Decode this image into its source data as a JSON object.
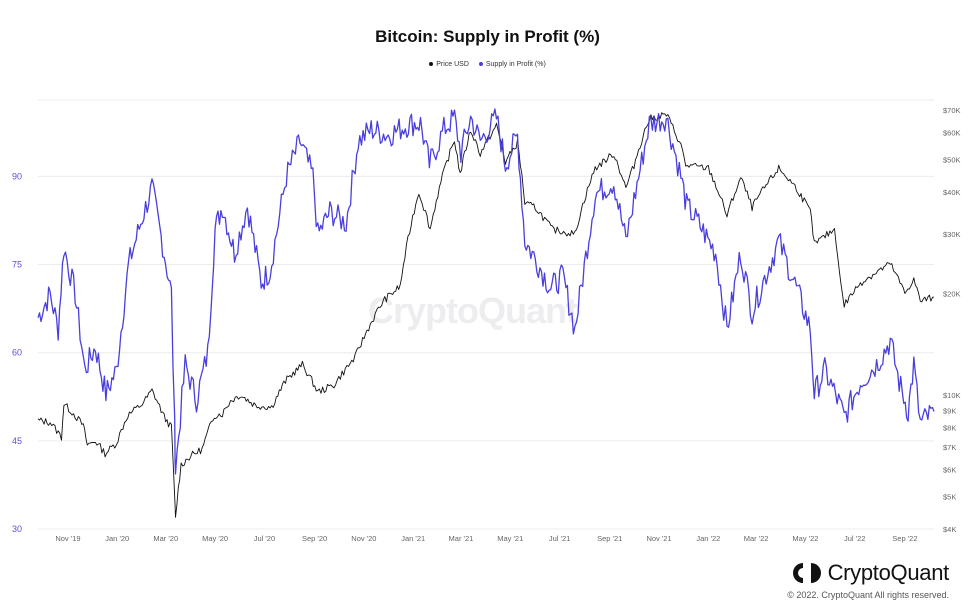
{
  "chart_data": {
    "type": "line",
    "title": "Bitcoin: Supply in Profit (%)",
    "x_tick_labels": [
      "Nov '19",
      "Jan '20",
      "Mar '20",
      "May '20",
      "Jul '20",
      "Sep '20",
      "Nov '20",
      "Jan '21",
      "Mar '21",
      "May '21",
      "Jul '21",
      "Sep '21",
      "Nov '21",
      "Jan '22",
      "Mar '22",
      "May '22",
      "Jul '22",
      "Sep '22"
    ],
    "x_range": [
      "2019-09-25",
      "2022-10-07"
    ],
    "y_left": {
      "ticks": [
        30,
        45,
        60,
        75,
        90
      ],
      "range": [
        30,
        103
      ],
      "color": "#5a4fd8"
    },
    "y_right": {
      "scale": "log",
      "ticks": [
        4000,
        5000,
        6000,
        7000,
        8000,
        9000,
        10000,
        20000,
        30000,
        40000,
        50000,
        60000,
        70000
      ],
      "tick_labels": [
        "$4K",
        "$5K",
        "$6K",
        "$7K",
        "$8K",
        "$9K",
        "$10K",
        "$20K",
        "$30K",
        "$40K",
        "$50K",
        "$60K",
        "$70K"
      ],
      "range": [
        4000,
        75000
      ]
    },
    "legend_position": "top-center",
    "grid": "horizontal",
    "series": [
      {
        "name": "Price USD",
        "axis": "right",
        "color": "#111111",
        "points": [
          [
            "2019-09-25",
            8400
          ],
          [
            "2019-10-10",
            8300
          ],
          [
            "2019-10-24",
            7500
          ],
          [
            "2019-10-27",
            9400
          ],
          [
            "2019-11-08",
            8800
          ],
          [
            "2019-11-20",
            8100
          ],
          [
            "2019-11-25",
            7100
          ],
          [
            "2019-12-05",
            7300
          ],
          [
            "2019-12-17",
            6700
          ],
          [
            "2019-12-31",
            7200
          ],
          [
            "2020-01-14",
            8700
          ],
          [
            "2020-02-01",
            9400
          ],
          [
            "2020-02-13",
            10300
          ],
          [
            "2020-02-28",
            8600
          ],
          [
            "2020-03-08",
            8000
          ],
          [
            "2020-03-12",
            4900
          ],
          [
            "2020-03-13",
            4300
          ],
          [
            "2020-03-20",
            6200
          ],
          [
            "2020-04-01",
            6600
          ],
          [
            "2020-04-15",
            6900
          ],
          [
            "2020-04-30",
            8700
          ],
          [
            "2020-05-10",
            8800
          ],
          [
            "2020-05-20",
            9600
          ],
          [
            "2020-06-01",
            10000
          ],
          [
            "2020-06-20",
            9300
          ],
          [
            "2020-07-10",
            9200
          ],
          [
            "2020-07-27",
            11000
          ],
          [
            "2020-08-17",
            12300
          ],
          [
            "2020-09-05",
            10200
          ],
          [
            "2020-09-25",
            10700
          ],
          [
            "2020-10-21",
            12900
          ],
          [
            "2020-11-05",
            15500
          ],
          [
            "2020-11-25",
            19000
          ],
          [
            "2020-12-16",
            21000
          ],
          [
            "2021-01-08",
            40000
          ],
          [
            "2021-01-22",
            31000
          ],
          [
            "2021-02-08",
            46000
          ],
          [
            "2021-02-21",
            57000
          ],
          [
            "2021-02-28",
            45000
          ],
          [
            "2021-03-13",
            61000
          ],
          [
            "2021-03-25",
            52000
          ],
          [
            "2021-04-14",
            63000
          ],
          [
            "2021-04-25",
            49000
          ],
          [
            "2021-05-10",
            56000
          ],
          [
            "2021-05-19",
            37000
          ],
          [
            "2021-06-01",
            36000
          ],
          [
            "2021-06-22",
            31000
          ],
          [
            "2021-07-20",
            30000
          ],
          [
            "2021-08-14",
            47000
          ],
          [
            "2021-09-06",
            52000
          ],
          [
            "2021-09-21",
            41000
          ],
          [
            "2021-10-01",
            48000
          ],
          [
            "2021-10-20",
            66000
          ],
          [
            "2021-11-10",
            68000
          ],
          [
            "2021-11-28",
            55000
          ],
          [
            "2021-12-04",
            48000
          ],
          [
            "2022-01-01",
            47000
          ],
          [
            "2022-01-24",
            34000
          ],
          [
            "2022-02-10",
            44000
          ],
          [
            "2022-02-24",
            36000
          ],
          [
            "2022-03-29",
            47000
          ],
          [
            "2022-04-20",
            41000
          ],
          [
            "2022-05-07",
            35000
          ],
          [
            "2022-05-12",
            28000
          ],
          [
            "2022-06-06",
            31000
          ],
          [
            "2022-06-14",
            21000
          ],
          [
            "2022-06-18",
            18500
          ],
          [
            "2022-07-08",
            21500
          ],
          [
            "2022-08-14",
            24500
          ],
          [
            "2022-09-01",
            20000
          ],
          [
            "2022-09-12",
            22000
          ],
          [
            "2022-09-20",
            19000
          ],
          [
            "2022-10-07",
            19500
          ]
        ]
      },
      {
        "name": "Supply in Profit (%)",
        "axis": "left",
        "color": "#4a3fdc",
        "points": [
          [
            "2019-09-25",
            66
          ],
          [
            "2019-10-10",
            70
          ],
          [
            "2019-10-20",
            64
          ],
          [
            "2019-10-27",
            78
          ],
          [
            "2019-11-10",
            70
          ],
          [
            "2019-11-22",
            57
          ],
          [
            "2019-12-05",
            61
          ],
          [
            "2019-12-18",
            53
          ],
          [
            "2019-12-31",
            57
          ],
          [
            "2020-01-15",
            75
          ],
          [
            "2020-02-01",
            83
          ],
          [
            "2020-02-13",
            88
          ],
          [
            "2020-02-28",
            77
          ],
          [
            "2020-03-08",
            70
          ],
          [
            "2020-03-12",
            47
          ],
          [
            "2020-03-13",
            40
          ],
          [
            "2020-03-25",
            58
          ],
          [
            "2020-04-08",
            52
          ],
          [
            "2020-04-22",
            60
          ],
          [
            "2020-05-01",
            81
          ],
          [
            "2020-05-10",
            85
          ],
          [
            "2020-05-25",
            77
          ],
          [
            "2020-06-10",
            85
          ],
          [
            "2020-06-27",
            72
          ],
          [
            "2020-07-08",
            74
          ],
          [
            "2020-07-28",
            90
          ],
          [
            "2020-08-14",
            96
          ],
          [
            "2020-08-30",
            90
          ],
          [
            "2020-09-05",
            80
          ],
          [
            "2020-09-20",
            84
          ],
          [
            "2020-10-10",
            82
          ],
          [
            "2020-10-25",
            96
          ],
          [
            "2020-11-10",
            98
          ],
          [
            "2020-12-01",
            97
          ],
          [
            "2020-12-28",
            99
          ],
          [
            "2021-01-10",
            99
          ],
          [
            "2021-01-21",
            92
          ],
          [
            "2021-02-08",
            98
          ],
          [
            "2021-02-21",
            100
          ],
          [
            "2021-03-01",
            94
          ],
          [
            "2021-03-13",
            100
          ],
          [
            "2021-03-25",
            96
          ],
          [
            "2021-04-14",
            100
          ],
          [
            "2021-04-25",
            92
          ],
          [
            "2021-05-10",
            97
          ],
          [
            "2021-05-19",
            79
          ],
          [
            "2021-06-01",
            76
          ],
          [
            "2021-06-20",
            71
          ],
          [
            "2021-07-05",
            73
          ],
          [
            "2021-07-20",
            64
          ],
          [
            "2021-08-14",
            87
          ],
          [
            "2021-09-06",
            89
          ],
          [
            "2021-09-21",
            79
          ],
          [
            "2021-10-01",
            86
          ],
          [
            "2021-10-20",
            99
          ],
          [
            "2021-11-10",
            100
          ],
          [
            "2021-11-28",
            90
          ],
          [
            "2021-12-05",
            85
          ],
          [
            "2021-12-20",
            82
          ],
          [
            "2022-01-10",
            77
          ],
          [
            "2022-01-24",
            64
          ],
          [
            "2022-02-10",
            77
          ],
          [
            "2022-02-24",
            67
          ],
          [
            "2022-03-29",
            79
          ],
          [
            "2022-04-20",
            71
          ],
          [
            "2022-05-07",
            64
          ],
          [
            "2022-05-12",
            53
          ],
          [
            "2022-05-25",
            57
          ],
          [
            "2022-06-13",
            51
          ],
          [
            "2022-06-18",
            49
          ],
          [
            "2022-07-08",
            55
          ],
          [
            "2022-07-28",
            58
          ],
          [
            "2022-08-14",
            62
          ],
          [
            "2022-08-25",
            55
          ],
          [
            "2022-09-05",
            50
          ],
          [
            "2022-09-12",
            58
          ],
          [
            "2022-09-20",
            48
          ],
          [
            "2022-10-07",
            50
          ]
        ]
      }
    ]
  },
  "watermark": "CryptoQuant",
  "brand": {
    "name": "CryptoQuant",
    "copyright": "© 2022. CryptoQuant All rights reserved."
  }
}
